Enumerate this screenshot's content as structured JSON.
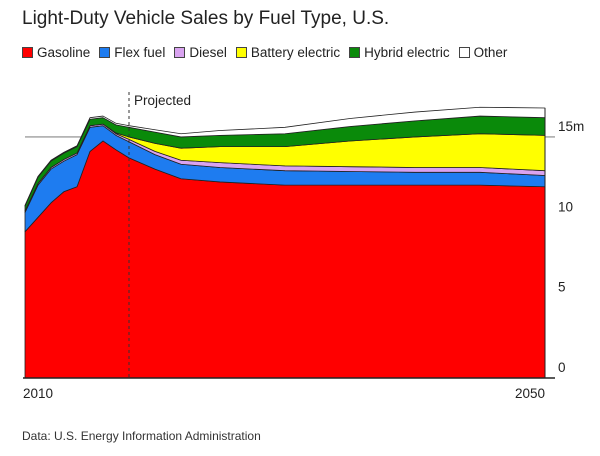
{
  "chart_data": {
    "type": "area",
    "stacked": true,
    "title": "Light-Duty Vehicle Sales by Fuel Type, U.S.",
    "source": "Data: U.S. Energy Information Administration",
    "annotation": "Projected",
    "projected_from": 2018,
    "x": [
      2010,
      2011,
      2012,
      2013,
      2014,
      2015,
      2016,
      2017,
      2018,
      2020,
      2022,
      2025,
      2030,
      2035,
      2040,
      2045,
      2050
    ],
    "x_tick_labels": [
      "2010",
      "2050"
    ],
    "y_ticks": [
      0,
      5,
      10,
      15
    ],
    "y_tick_labels": [
      "0",
      "5",
      "10",
      "15m"
    ],
    "ylim": [
      0,
      17
    ],
    "xlim": [
      2010,
      2050
    ],
    "grid": "15m only",
    "legend_position": "top",
    "ylabel": "",
    "xlabel": "",
    "series": [
      {
        "name": "Gasoline",
        "color": "#ff0000",
        "values": [
          9.1,
          10.0,
          10.9,
          11.6,
          11.9,
          14.1,
          14.75,
          14.2,
          13.7,
          13.0,
          12.4,
          12.2,
          12.0,
          12.0,
          12.0,
          12.0,
          11.9
        ]
      },
      {
        "name": "Flex fuel",
        "color": "#1e7cf0",
        "values": [
          1.2,
          2.0,
          2.1,
          1.9,
          2.0,
          1.5,
          0.95,
          0.9,
          1.0,
          0.9,
          0.9,
          0.9,
          0.9,
          0.85,
          0.8,
          0.8,
          0.7
        ]
      },
      {
        "name": "Diesel",
        "color": "#d9a3f0",
        "values": [
          0.1,
          0.1,
          0.1,
          0.1,
          0.1,
          0.1,
          0.1,
          0.1,
          0.15,
          0.2,
          0.25,
          0.3,
          0.3,
          0.3,
          0.3,
          0.3,
          0.3
        ]
      },
      {
        "name": "Battery electric",
        "color": "#ffff00",
        "values": [
          0,
          0,
          0,
          0,
          0,
          0,
          0,
          0.05,
          0.15,
          0.5,
          0.75,
          1.0,
          1.2,
          1.6,
          1.9,
          2.1,
          2.2
        ]
      },
      {
        "name": "Hybrid electric",
        "color": "#0a8a0a",
        "values": [
          0.3,
          0.4,
          0.4,
          0.4,
          0.4,
          0.4,
          0.4,
          0.5,
          0.6,
          0.7,
          0.7,
          0.7,
          0.8,
          0.9,
          1.0,
          1.1,
          1.1
        ]
      },
      {
        "name": "Other",
        "color": "#ffffff",
        "values": [
          0.05,
          0.05,
          0.05,
          0.05,
          0.05,
          0.1,
          0.1,
          0.1,
          0.1,
          0.15,
          0.2,
          0.3,
          0.4,
          0.5,
          0.55,
          0.55,
          0.6
        ]
      }
    ]
  }
}
